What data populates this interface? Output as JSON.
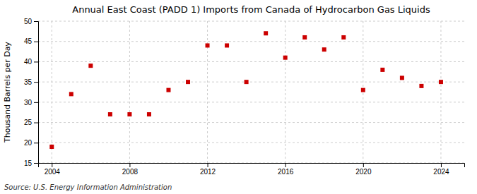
{
  "chart_data": {
    "type": "scatter",
    "title": "Annual East Coast (PADD 1) Imports from Canada of Hydrocarbon Gas Liquids",
    "ylabel": "Thousand Barrels per Day",
    "source": "Source: U.S. Energy Information Administration",
    "x": [
      2004,
      2005,
      2006,
      2007,
      2008,
      2009,
      2010,
      2011,
      2012,
      2013,
      2014,
      2015,
      2016,
      2017,
      2018,
      2019,
      2020,
      2021,
      2022,
      2023,
      2024
    ],
    "values": [
      19,
      32,
      39,
      27,
      27,
      27,
      33,
      35,
      44,
      44,
      35,
      47,
      41,
      46,
      43,
      46,
      33,
      38,
      36,
      34,
      35
    ],
    "color": "#cc0000",
    "marker": "square",
    "xlim": [
      2003.3,
      2025.2
    ],
    "ylim": [
      15,
      50
    ],
    "xticks": [
      2004,
      2008,
      2012,
      2016,
      2020,
      2024
    ],
    "yticks": [
      15,
      20,
      25,
      30,
      35,
      40,
      45,
      50
    ],
    "grid": true
  }
}
